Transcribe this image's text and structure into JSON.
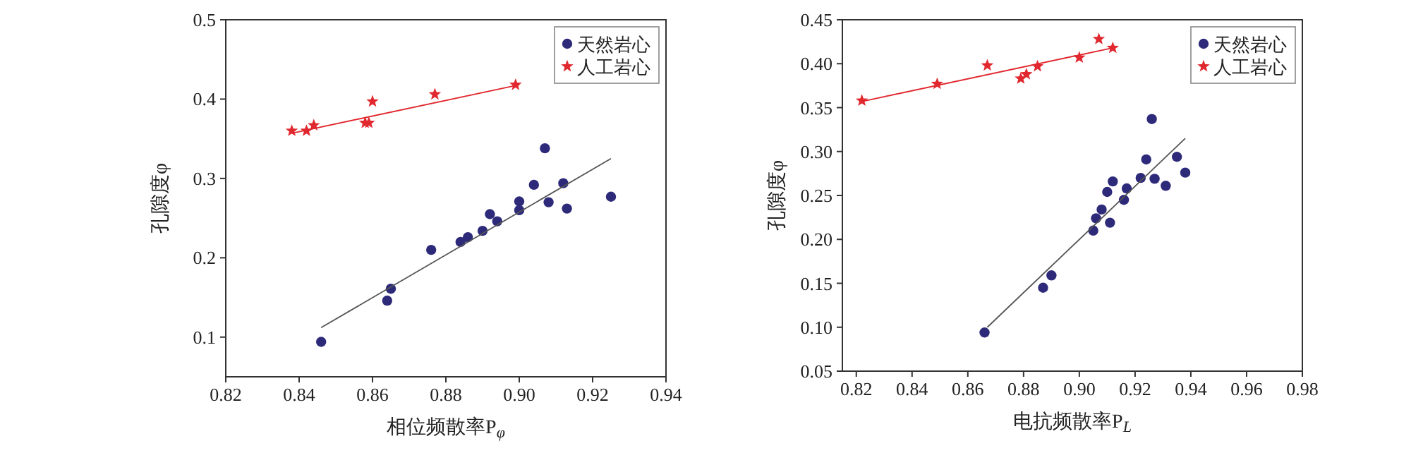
{
  "chart_data": [
    {
      "type": "scatter",
      "xlabel": "相位频散率P$_{φ}$",
      "ylabel": "孔隙度φ",
      "xlim": [
        0.82,
        0.94
      ],
      "ylim": [
        0.05,
        0.5
      ],
      "xticks": [
        {
          "value": 0.82,
          "label": "0.82"
        },
        {
          "value": 0.84,
          "label": "0.84"
        },
        {
          "value": 0.86,
          "label": "0.86"
        },
        {
          "value": 0.88,
          "label": "0.88"
        },
        {
          "value": 0.9,
          "label": "0.90"
        },
        {
          "value": 0.92,
          "label": "0.92"
        },
        {
          "value": 0.94,
          "label": "0.94"
        }
      ],
      "yticks": [
        0.1,
        0.2,
        0.3,
        0.4,
        0.5
      ],
      "legend": "top right",
      "series": [
        {
          "name": "天然岩心",
          "type": "scatter",
          "marker": "circle",
          "color": "#2e2a7a",
          "x": [
            0.846,
            0.864,
            0.865,
            0.876,
            0.884,
            0.886,
            0.89,
            0.892,
            0.894,
            0.9,
            0.9,
            0.904,
            0.907,
            0.908,
            0.912,
            0.913,
            0.925
          ],
          "values": [
            0.094,
            0.146,
            0.161,
            0.21,
            0.22,
            0.226,
            0.234,
            0.255,
            0.246,
            0.26,
            0.271,
            0.292,
            0.338,
            0.27,
            0.294,
            0.262,
            0.277
          ]
        },
        {
          "name": "人工岩心",
          "type": "scatter",
          "marker": "star",
          "color": "#e0282e",
          "x": [
            0.838,
            0.842,
            0.844,
            0.858,
            0.859,
            0.86,
            0.877,
            0.899
          ],
          "values": [
            0.36,
            0.36,
            0.367,
            0.37,
            0.37,
            0.397,
            0.406,
            0.418
          ]
        },
        {
          "type": "line",
          "color": "#555555",
          "x": [
            0.846,
            0.925
          ],
          "values": [
            0.112,
            0.325
          ]
        },
        {
          "type": "line",
          "color": "#e0282e",
          "x": [
            0.838,
            0.9
          ],
          "values": [
            0.357,
            0.418
          ]
        }
      ]
    },
    {
      "type": "scatter",
      "xlabel": "电抗频散率P$_{L}$",
      "ylabel": "孔隙度φ",
      "xlim": [
        0.815,
        0.98
      ],
      "ylim": [
        0.05,
        0.45
      ],
      "xticks": [
        {
          "value": 0.82,
          "label": "0.82"
        },
        {
          "value": 0.84,
          "label": "0.84"
        },
        {
          "value": 0.86,
          "label": "0.86"
        },
        {
          "value": 0.88,
          "label": "0.88"
        },
        {
          "value": 0.9,
          "label": "0.90"
        },
        {
          "value": 0.92,
          "label": "0.92"
        },
        {
          "value": 0.94,
          "label": "0.94"
        },
        {
          "value": 0.96,
          "label": "0.96"
        },
        {
          "value": 0.98,
          "label": "0.98"
        }
      ],
      "yticks": [
        0.05,
        {
          "value": 0.1,
          "label": "0.10"
        },
        0.15,
        {
          "value": 0.2,
          "label": "0.20"
        },
        0.25,
        {
          "value": 0.3,
          "label": "0.30"
        },
        0.35,
        {
          "value": 0.4,
          "label": "0.40"
        },
        0.45
      ],
      "legend": "top right",
      "series": [
        {
          "name": "天然岩心",
          "type": "scatter",
          "marker": "circle",
          "color": "#2e2a7a",
          "x": [
            0.866,
            0.887,
            0.89,
            0.905,
            0.906,
            0.908,
            0.911,
            0.91,
            0.912,
            0.916,
            0.917,
            0.922,
            0.924,
            0.926,
            0.927,
            0.931,
            0.935,
            0.938
          ],
          "values": [
            0.094,
            0.145,
            0.159,
            0.21,
            0.224,
            0.234,
            0.219,
            0.254,
            0.266,
            0.245,
            0.258,
            0.27,
            0.291,
            0.337,
            0.269,
            0.261,
            0.294,
            0.276
          ]
        },
        {
          "name": "人工岩心",
          "type": "scatter",
          "marker": "star",
          "color": "#e0282e",
          "x": [
            0.822,
            0.849,
            0.867,
            0.879,
            0.881,
            0.885,
            0.9,
            0.907,
            0.912
          ],
          "values": [
            0.358,
            0.377,
            0.398,
            0.383,
            0.388,
            0.397,
            0.407,
            0.428,
            0.418
          ]
        },
        {
          "type": "line",
          "color": "#555555",
          "x": [
            0.867,
            0.938
          ],
          "values": [
            0.1,
            0.315
          ]
        },
        {
          "type": "line",
          "color": "#e0282e",
          "x": [
            0.822,
            0.912
          ],
          "values": [
            0.357,
            0.418
          ]
        }
      ]
    }
  ]
}
